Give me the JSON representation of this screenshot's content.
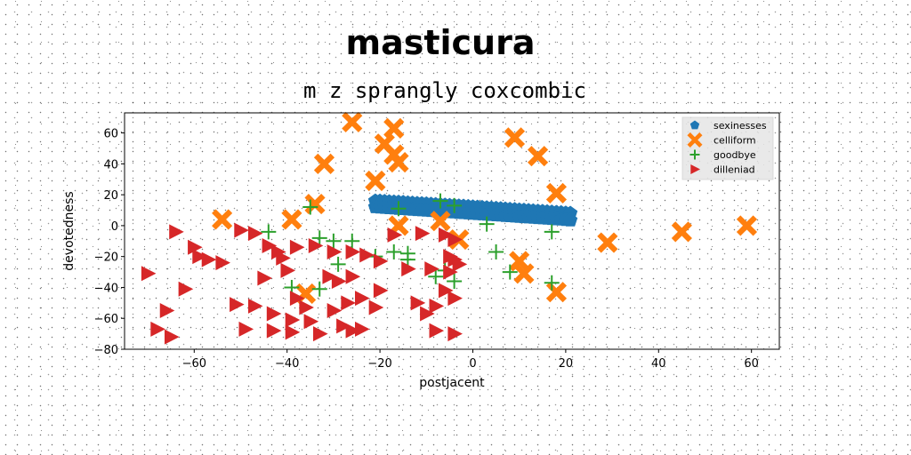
{
  "chart_data": {
    "type": "scatter",
    "title": "masticura",
    "subtitle": "m z sprangly coxcombic",
    "xlabel": "postjacent",
    "ylabel": "devotedness",
    "xlim": [
      -75,
      66
    ],
    "ylim": [
      -80,
      73
    ],
    "xticks": [
      -60,
      -40,
      -20,
      0,
      20,
      40,
      60
    ],
    "yticks": [
      -80,
      -60,
      -40,
      -20,
      0,
      20,
      40,
      60
    ],
    "grid": false,
    "legend_position": "top-right",
    "series": [
      {
        "name": "sexinesses",
        "marker": "pentagon",
        "color": "#1f77b4",
        "points": [
          [
            -21,
            16
          ],
          [
            -20,
            15.9
          ],
          [
            -19,
            15.7
          ],
          [
            -18,
            15.5
          ],
          [
            -17,
            15.3
          ],
          [
            -16,
            15.2
          ],
          [
            -15,
            15
          ],
          [
            -14,
            14.8
          ],
          [
            -13,
            14.6
          ],
          [
            -12,
            14.4
          ],
          [
            -11,
            14.3
          ],
          [
            -10,
            14.1
          ],
          [
            -9,
            13.9
          ],
          [
            -8,
            13.7
          ],
          [
            -7,
            13.5
          ],
          [
            -6,
            13.3
          ],
          [
            -5,
            13.1
          ],
          [
            -4,
            13
          ],
          [
            -3,
            12.8
          ],
          [
            -2,
            12.6
          ],
          [
            -1,
            12.4
          ],
          [
            0,
            12.2
          ],
          [
            1,
            12
          ],
          [
            2,
            11.8
          ],
          [
            3,
            11.6
          ],
          [
            4,
            11.4
          ],
          [
            5,
            11.2
          ],
          [
            6,
            11
          ],
          [
            7,
            10.8
          ],
          [
            8,
            10.6
          ],
          [
            9,
            10.4
          ],
          [
            10,
            10.2
          ],
          [
            11,
            10
          ],
          [
            12,
            9.8
          ],
          [
            13,
            9.6
          ],
          [
            14,
            9.4
          ],
          [
            15,
            9.2
          ],
          [
            16,
            9
          ],
          [
            17,
            8.8
          ],
          [
            18,
            8.6
          ],
          [
            19,
            8.4
          ],
          [
            20,
            8.2
          ],
          [
            21,
            8
          ],
          [
            -21,
            12
          ],
          [
            -20,
            11.8
          ],
          [
            -19,
            11.6
          ],
          [
            -18,
            11.4
          ],
          [
            -17,
            11.2
          ],
          [
            -16,
            11
          ],
          [
            -15,
            10.8
          ],
          [
            -14,
            10.6
          ],
          [
            -13,
            10.4
          ],
          [
            -12,
            10.2
          ],
          [
            -11,
            10
          ],
          [
            -10,
            9.8
          ],
          [
            -9,
            9.6
          ],
          [
            -8,
            9.4
          ],
          [
            -7,
            9.2
          ],
          [
            -6,
            9
          ],
          [
            -5,
            8.8
          ],
          [
            -4,
            8.6
          ],
          [
            -3,
            8.4
          ],
          [
            -2,
            8.2
          ],
          [
            -1,
            8
          ],
          [
            0,
            7.8
          ],
          [
            1,
            7.6
          ],
          [
            2,
            7.4
          ],
          [
            3,
            7.2
          ],
          [
            4,
            7
          ],
          [
            5,
            6.8
          ],
          [
            6,
            6.6
          ],
          [
            7,
            6.4
          ],
          [
            8,
            6.2
          ],
          [
            9,
            6
          ],
          [
            10,
            5.8
          ],
          [
            11,
            5.6
          ],
          [
            12,
            5.4
          ],
          [
            13,
            5.2
          ],
          [
            14,
            5
          ],
          [
            15,
            4.8
          ],
          [
            16,
            4.6
          ],
          [
            17,
            4.4
          ],
          [
            18,
            4.2
          ],
          [
            19,
            4
          ],
          [
            20,
            3.8
          ],
          [
            21,
            3.5
          ]
        ]
      },
      {
        "name": "celliform",
        "marker": "x-filled",
        "color": "#ff7f0e",
        "points": [
          [
            -26,
            67
          ],
          [
            -17,
            63
          ],
          [
            -19,
            53
          ],
          [
            -17,
            46
          ],
          [
            -16,
            41
          ],
          [
            -32,
            40
          ],
          [
            -21,
            29
          ],
          [
            -34,
            14
          ],
          [
            -39,
            4
          ],
          [
            -54,
            4
          ],
          [
            -16,
            0
          ],
          [
            -7,
            3
          ],
          [
            -3,
            -9
          ],
          [
            9,
            57
          ],
          [
            14,
            45
          ],
          [
            18,
            21
          ],
          [
            29,
            -11
          ],
          [
            45,
            -4
          ],
          [
            59,
            0
          ],
          [
            10,
            -23
          ],
          [
            11,
            -31
          ],
          [
            18,
            -43
          ],
          [
            -36,
            -44
          ]
        ]
      },
      {
        "name": "goodbye",
        "marker": "plus",
        "color": "#2ca02c",
        "points": [
          [
            -35,
            12
          ],
          [
            -16,
            11
          ],
          [
            -7,
            16
          ],
          [
            -4,
            13
          ],
          [
            3,
            1
          ],
          [
            17,
            -4
          ],
          [
            -44,
            -4
          ],
          [
            -33,
            -8
          ],
          [
            -30,
            -10
          ],
          [
            -26,
            -10
          ],
          [
            -21,
            -20
          ],
          [
            -17,
            -17
          ],
          [
            -14,
            -18
          ],
          [
            -14,
            -22
          ],
          [
            -29,
            -25
          ],
          [
            -8,
            -33
          ],
          [
            -6,
            -29
          ],
          [
            -4,
            -36
          ],
          [
            5,
            -17
          ],
          [
            8,
            -30
          ],
          [
            17,
            -37
          ],
          [
            -39,
            -40
          ],
          [
            -33,
            -41
          ]
        ]
      },
      {
        "name": "dilleniad",
        "marker": "triangle-right",
        "color": "#d62728",
        "points": [
          [
            -64,
            -4
          ],
          [
            -50,
            -3
          ],
          [
            -47,
            -5
          ],
          [
            -17,
            -6
          ],
          [
            -11,
            -5
          ],
          [
            -6,
            -6
          ],
          [
            -4,
            -9
          ],
          [
            -60,
            -14
          ],
          [
            -59,
            -20
          ],
          [
            -57,
            -22
          ],
          [
            -54,
            -24
          ],
          [
            -44,
            -13
          ],
          [
            -42,
            -17
          ],
          [
            -41,
            -21
          ],
          [
            -38,
            -14
          ],
          [
            -34,
            -13
          ],
          [
            -30,
            -17
          ],
          [
            -26,
            -17
          ],
          [
            -23,
            -19
          ],
          [
            -20,
            -23
          ],
          [
            -14,
            -28
          ],
          [
            -9,
            -28
          ],
          [
            -5,
            -20
          ],
          [
            -4,
            -22
          ],
          [
            -3,
            -25
          ],
          [
            -5,
            -30
          ],
          [
            -70,
            -31
          ],
          [
            -45,
            -34
          ],
          [
            -40,
            -29
          ],
          [
            -31,
            -33
          ],
          [
            -29,
            -36
          ],
          [
            -26,
            -33
          ],
          [
            -20,
            -42
          ],
          [
            -12,
            -50
          ],
          [
            -8,
            -52
          ],
          [
            -6,
            -42
          ],
          [
            -4,
            -47
          ],
          [
            -62,
            -41
          ],
          [
            -38,
            -47
          ],
          [
            -36,
            -53
          ],
          [
            -30,
            -55
          ],
          [
            -27,
            -50
          ],
          [
            -24,
            -47
          ],
          [
            -21,
            -53
          ],
          [
            -10,
            -57
          ],
          [
            -66,
            -55
          ],
          [
            -51,
            -51
          ],
          [
            -47,
            -52
          ],
          [
            -43,
            -57
          ],
          [
            -39,
            -61
          ],
          [
            -35,
            -62
          ],
          [
            -28,
            -65
          ],
          [
            -24,
            -67
          ],
          [
            -68,
            -67
          ],
          [
            -65,
            -72
          ],
          [
            -49,
            -67
          ],
          [
            -43,
            -68
          ],
          [
            -39,
            -69
          ],
          [
            -33,
            -70
          ],
          [
            -26,
            -68
          ],
          [
            -8,
            -68
          ],
          [
            -4,
            -70
          ]
        ]
      }
    ]
  }
}
